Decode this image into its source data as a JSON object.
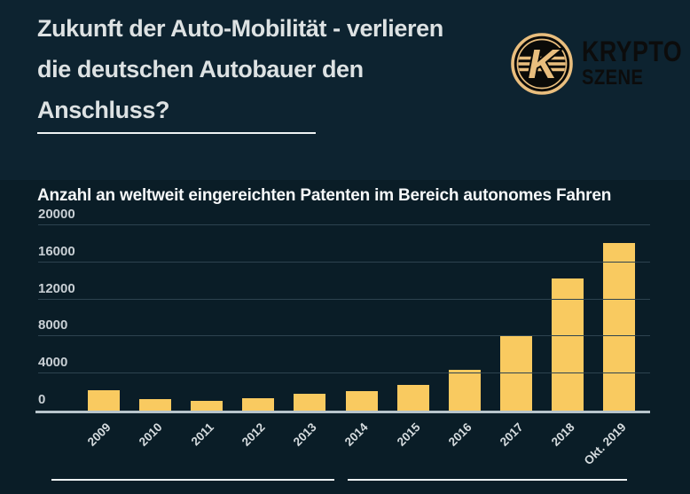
{
  "header": {
    "title_lines": [
      "Zukunft der Auto-Mobilität - verlieren",
      "die deutschen Autobauer den",
      "Anschluss?"
    ],
    "logo": {
      "monogram": "K",
      "brand_line1": "KRYPTO",
      "brand_line2": "SZENE",
      "gold": "#e9be7e",
      "text_color": "#0c0c0c"
    }
  },
  "chart_data": {
    "type": "bar",
    "title": "Anzahl an weltweit eingereichten Patenten im Bereich autonomes Fahren",
    "categories": [
      "2009",
      "2010",
      "2011",
      "2012",
      "2013",
      "2014",
      "2015",
      "2016",
      "2017",
      "2018",
      "Okt. 2019"
    ],
    "values": [
      2200,
      1200,
      1100,
      1300,
      1800,
      2100,
      2800,
      4400,
      8000,
      14300,
      18100
    ],
    "xlabel": "",
    "ylabel": "",
    "ylim": [
      0,
      20000
    ],
    "yticks": [
      0,
      4000,
      8000,
      12000,
      16000,
      20000
    ],
    "grid": true,
    "legend": false,
    "bar_color": "#f9ca60",
    "background": "#0a1d27",
    "header_background": "#0d2330"
  }
}
